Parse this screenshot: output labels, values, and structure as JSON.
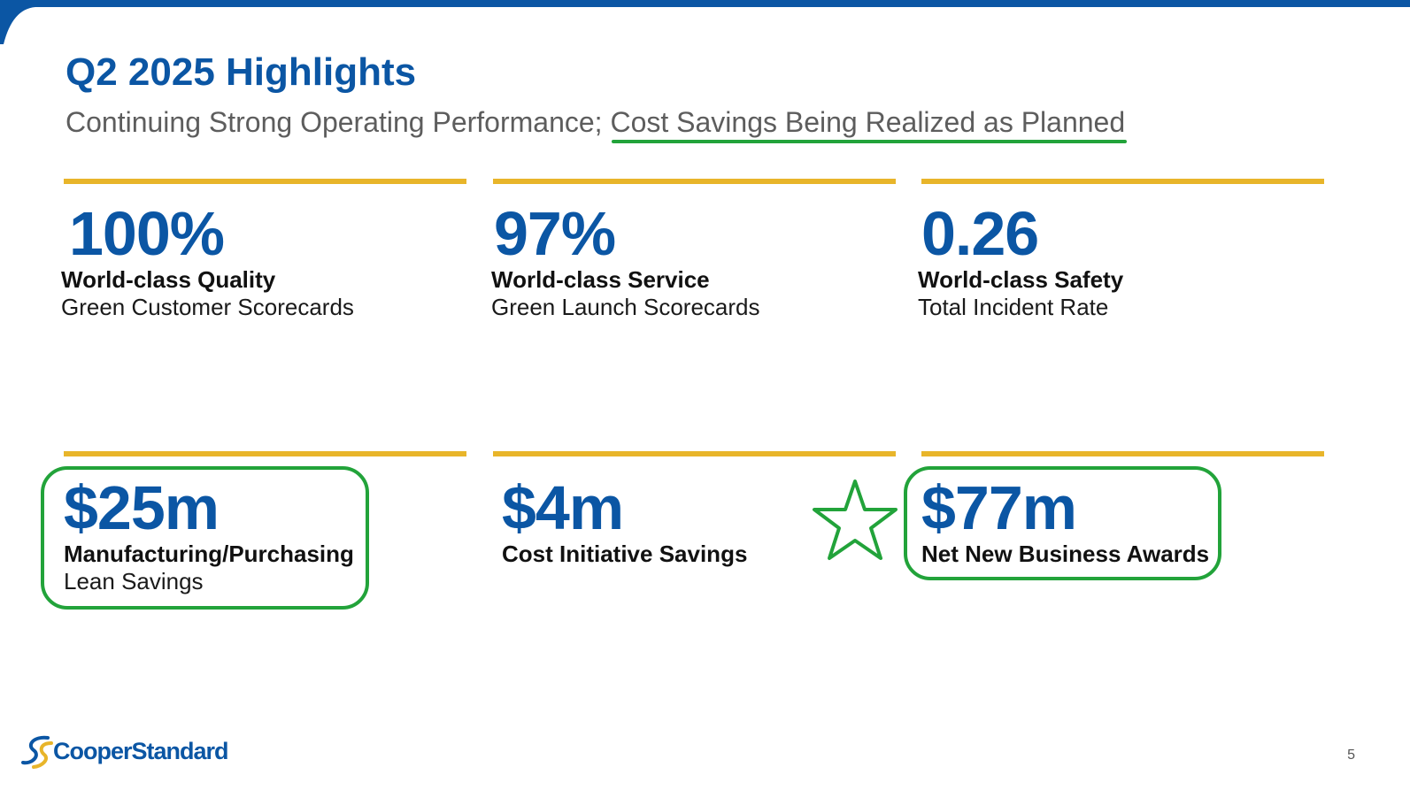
{
  "slide": {
    "title": "Q2 2025 Highlights",
    "subtitle_prefix": "Continuing Strong Operating Performance; ",
    "subtitle_highlight": "Cost Savings Being Realized as Planned",
    "page_number": "5"
  },
  "kpis": [
    {
      "value": "100%",
      "label": "World-class Quality",
      "sub": "Green Customer Scorecards"
    },
    {
      "value": "97%",
      "label": "World-class Service",
      "sub": "Green Launch Scorecards"
    },
    {
      "value": "0.26",
      "label": "World-class Safety",
      "sub": "Total Incident Rate"
    },
    {
      "value": "$25m",
      "label": "Manufacturing/Purchasing",
      "sub": "Lean Savings"
    },
    {
      "value": "$4m",
      "label": "Cost Initiative Savings"
    },
    {
      "value": "$77m",
      "label": "Net New Business Awards"
    }
  ],
  "logo": {
    "text": "CooperStandard"
  },
  "colors": {
    "brand_blue": "#0b56a4",
    "accent_gold": "#e8b52a",
    "annotation_green": "#22a33a"
  },
  "icons": {
    "annotation_star": "star-icon",
    "logo_mark": "cooper-standard-logo-icon"
  }
}
